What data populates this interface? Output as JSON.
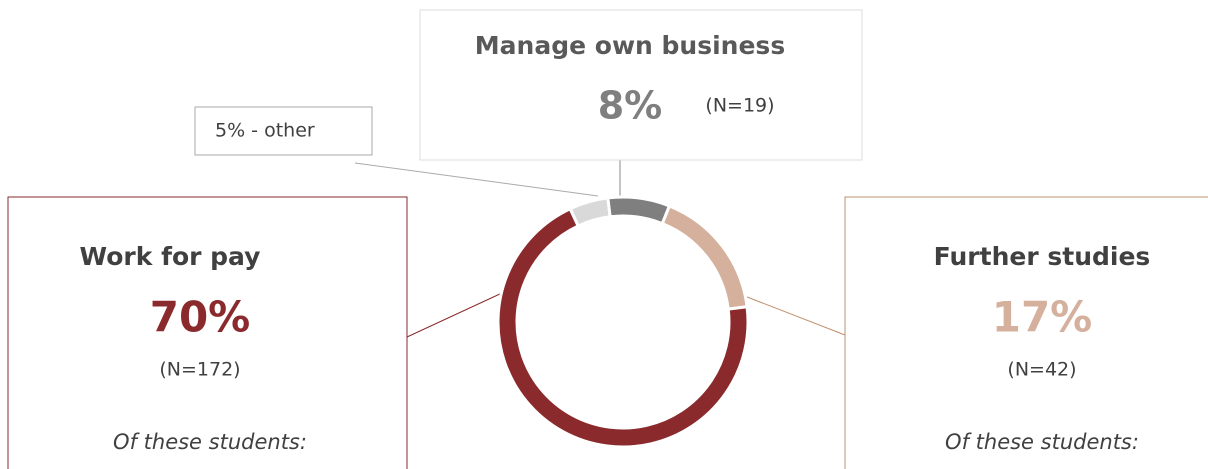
{
  "chart_data": {
    "type": "pie",
    "categories": [
      "Manage own business",
      "Further studies",
      "Work for pay",
      null
    ],
    "values": [
      8,
      17,
      70,
      5
    ],
    "value_labels": [
      "8%",
      "17%",
      "70%",
      "5% - other"
    ],
    "count_labels": [
      "(N=19)",
      "(N=42)",
      "(N=172)",
      null
    ],
    "notes": [
      null,
      "Of these students:",
      "Of these students:",
      null
    ],
    "colors": [
      "#7f7f7f",
      "#d4b09d",
      "#8b2a2c",
      "#d9d9d9"
    ],
    "donut": true
  }
}
